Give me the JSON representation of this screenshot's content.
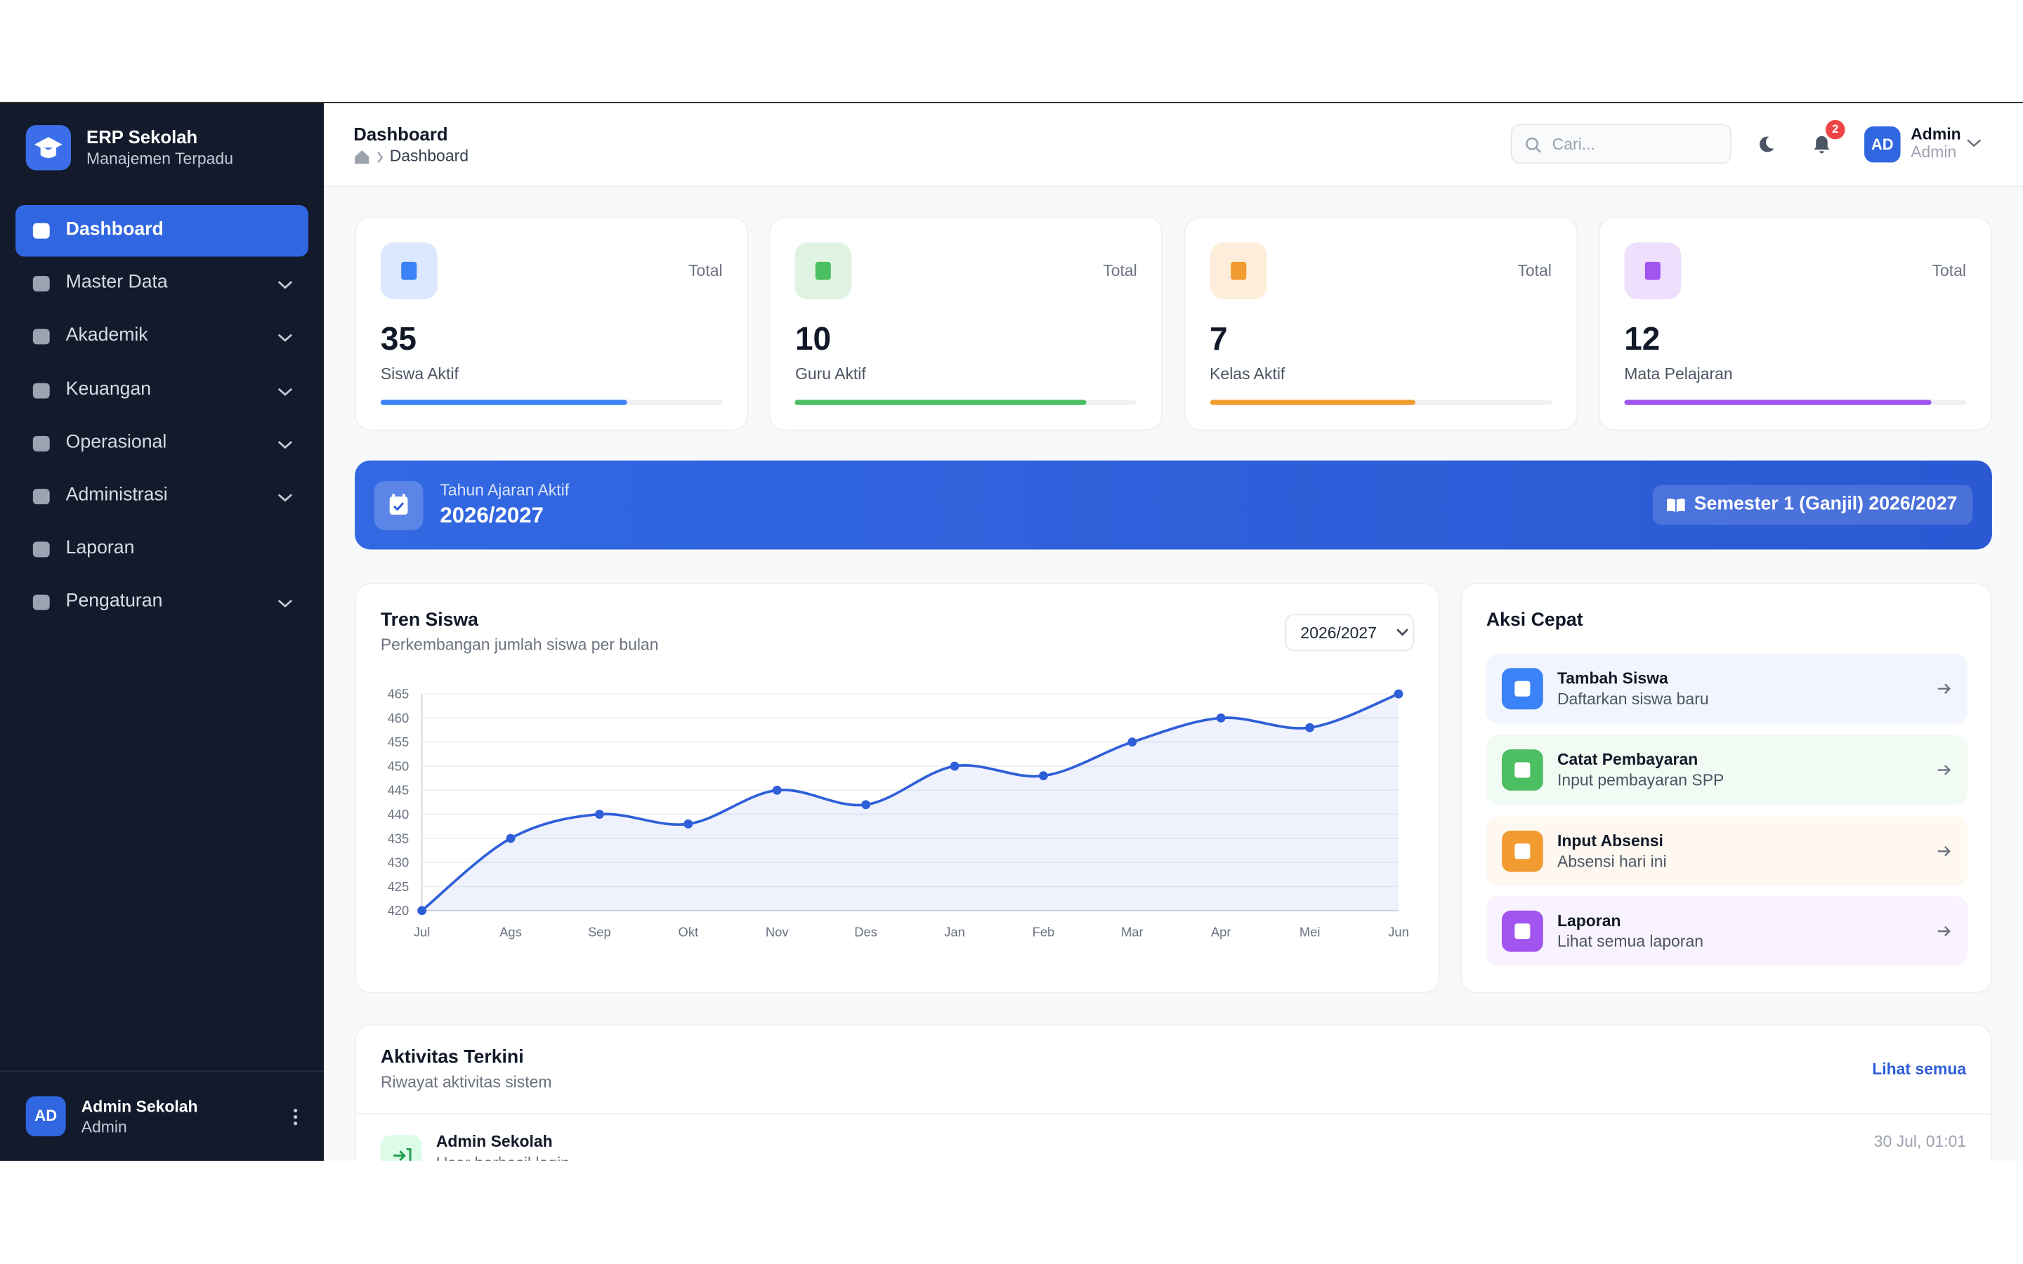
{
  "brand": {
    "title": "ERP Sekolah",
    "subtitle": "Manajemen Terpadu"
  },
  "menu": [
    {
      "label": "Dashboard",
      "active": true,
      "expandable": false
    },
    {
      "label": "Master Data",
      "active": false,
      "expandable": true
    },
    {
      "label": "Akademik",
      "active": false,
      "expandable": true
    },
    {
      "label": "Keuangan",
      "active": false,
      "expandable": true
    },
    {
      "label": "Operasional",
      "active": false,
      "expandable": true
    },
    {
      "label": "Administrasi",
      "active": false,
      "expandable": true
    },
    {
      "label": "Laporan",
      "active": false,
      "expandable": false
    },
    {
      "label": "Pengaturan",
      "active": false,
      "expandable": true
    }
  ],
  "user_footer": {
    "initials": "AD",
    "name": "Admin Sekolah",
    "role": "Admin"
  },
  "header": {
    "title": "Dashboard",
    "breadcrumb": "Dashboard",
    "search_placeholder": "Cari...",
    "notifications": 2,
    "user": {
      "initials": "AD",
      "name": "Admin",
      "role": "Admin"
    }
  },
  "stats": [
    {
      "caption": "Total",
      "value": 35,
      "label": "Siswa Aktif",
      "progress": 72,
      "color": "#3b82f6"
    },
    {
      "caption": "Total",
      "value": 10,
      "label": "Guru Aktif",
      "progress": 85,
      "color": "#4cbf62"
    },
    {
      "caption": "Total",
      "value": 7,
      "label": "Kelas Aktif",
      "progress": 60,
      "color": "#f29b30"
    },
    {
      "caption": "Total",
      "value": 12,
      "label": "Mata Pelajaran",
      "progress": 90,
      "color": "#a154ee"
    }
  ],
  "banner": {
    "caption": "Tahun Ajaran Aktif",
    "year": "2026/2027",
    "semester": "Semester 1 (Ganjil) 2026/2027"
  },
  "trend": {
    "title": "Tren Siswa",
    "subtitle": "Perkembangan jumlah siswa per bulan",
    "selector": "2026/2027",
    "chart_data": {
      "type": "line",
      "color": "#2f5fd8",
      "categories": [
        "Jul",
        "Ags",
        "Sep",
        "Okt",
        "Nov",
        "Des",
        "Jan",
        "Feb",
        "Mar",
        "Apr",
        "Mei",
        "Jun"
      ],
      "values": [
        420,
        435,
        440,
        438,
        445,
        442,
        450,
        448,
        455,
        460,
        458,
        465
      ],
      "ylim": [
        420,
        465
      ],
      "yticks": [
        420,
        425,
        430,
        435,
        440,
        445,
        450,
        455,
        460,
        465
      ],
      "grid": true
    }
  },
  "quick_actions": {
    "title": "Aksi Cepat",
    "items": [
      {
        "title": "Tambah Siswa",
        "subtitle": "Daftarkan siswa baru",
        "color": "#3b82f6"
      },
      {
        "title": "Catat Pembayaran",
        "subtitle": "Input pembayaran SPP",
        "color": "#4cbf62"
      },
      {
        "title": "Input Absensi",
        "subtitle": "Absensi hari ini",
        "color": "#f29b30"
      },
      {
        "title": "Laporan",
        "subtitle": "Lihat semua laporan",
        "color": "#a154ee"
      }
    ]
  },
  "activity": {
    "title": "Aktivitas Terkini",
    "subtitle": "Riwayat aktivitas sistem",
    "link": "Lihat semua",
    "items": [
      {
        "user": "Admin Sekolah",
        "action": "User berhasil login",
        "time": "30 Jul, 01:01"
      }
    ]
  }
}
